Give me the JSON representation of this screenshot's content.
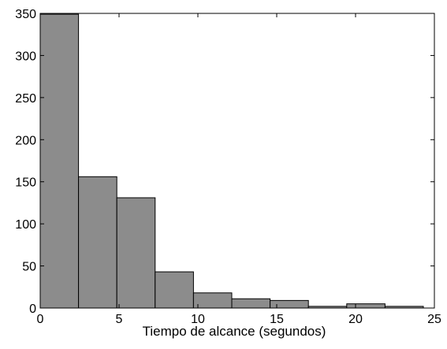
{
  "chart_data": {
    "type": "bar",
    "title": "",
    "xlabel": "Tiempo de alcance (segundos)",
    "ylabel": "",
    "xlim": [
      0,
      25
    ],
    "ylim": [
      0,
      350
    ],
    "xticks": [
      0,
      5,
      10,
      15,
      20,
      25
    ],
    "yticks": [
      0,
      50,
      100,
      150,
      200,
      250,
      300,
      350
    ],
    "grid": false,
    "legend": "none",
    "bar_color": "#8c8c8c",
    "edge_color": "#000000",
    "bins": [
      {
        "x0": 0.0,
        "x1": 2.43,
        "value": 349
      },
      {
        "x0": 2.43,
        "x1": 4.86,
        "value": 156
      },
      {
        "x0": 4.86,
        "x1": 7.29,
        "value": 131
      },
      {
        "x0": 7.29,
        "x1": 9.72,
        "value": 43
      },
      {
        "x0": 9.72,
        "x1": 12.15,
        "value": 18
      },
      {
        "x0": 12.15,
        "x1": 14.58,
        "value": 11
      },
      {
        "x0": 14.58,
        "x1": 17.01,
        "value": 9
      },
      {
        "x0": 17.01,
        "x1": 19.44,
        "value": 2
      },
      {
        "x0": 19.44,
        "x1": 21.87,
        "value": 5
      },
      {
        "x0": 21.87,
        "x1": 24.3,
        "value": 2
      }
    ]
  }
}
